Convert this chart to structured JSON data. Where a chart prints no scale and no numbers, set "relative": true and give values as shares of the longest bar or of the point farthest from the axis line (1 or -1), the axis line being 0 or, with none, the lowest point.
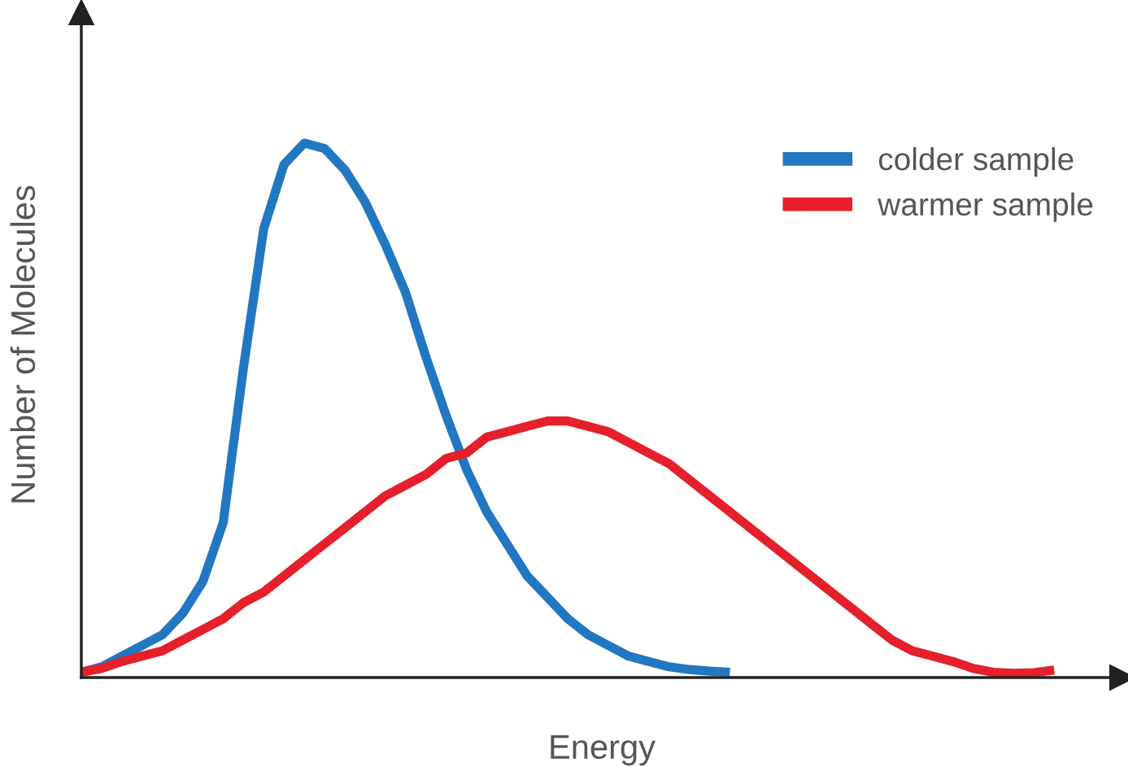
{
  "chart_data": {
    "type": "line",
    "relative": true,
    "xlabel": "Energy",
    "ylabel": "Number of Molecules",
    "legend": "top right",
    "marker": "none",
    "line_style": "solid",
    "categories": [
      null,
      null,
      null,
      null,
      null,
      null,
      null,
      null,
      null,
      null,
      null,
      null,
      null,
      null,
      null,
      null,
      null,
      null,
      null,
      null,
      null,
      null,
      null,
      null,
      null,
      null,
      null,
      null,
      null,
      null,
      null,
      null,
      null,
      null,
      null,
      null,
      null,
      null,
      null,
      null,
      null,
      null,
      null,
      null,
      null,
      null,
      null,
      null,
      null
    ],
    "series": [
      {
        "name": "colder sample",
        "color": "#2277c2",
        "values": [
          0.01,
          0.02,
          0.04,
          0.06,
          0.08,
          0.12,
          0.18,
          0.29,
          0.58,
          0.84,
          0.96,
          1.0,
          0.99,
          0.95,
          0.89,
          0.81,
          0.72,
          0.6,
          0.49,
          0.39,
          0.31,
          0.25,
          0.19,
          0.15,
          0.11,
          0.08,
          0.06,
          0.04,
          0.03,
          0.02,
          0.015,
          0.012,
          0.01,
          null,
          null,
          null,
          null,
          null,
          null,
          null,
          null,
          null,
          null,
          null,
          null,
          null,
          null,
          null,
          null
        ]
      },
      {
        "name": "warmer sample",
        "color": "#e5202a",
        "values": [
          0.01,
          0.017,
          0.03,
          0.04,
          0.05,
          0.07,
          0.09,
          0.11,
          0.14,
          0.16,
          0.19,
          0.22,
          0.25,
          0.28,
          0.31,
          0.34,
          0.36,
          0.38,
          0.41,
          0.42,
          0.45,
          0.46,
          0.47,
          0.48,
          0.48,
          0.47,
          0.46,
          0.44,
          0.42,
          0.4,
          0.37,
          0.34,
          0.31,
          0.28,
          0.25,
          0.22,
          0.19,
          0.16,
          0.13,
          0.1,
          0.07,
          0.05,
          0.04,
          0.03,
          0.017,
          0.01,
          0.008,
          0.009,
          0.014
        ]
      }
    ]
  }
}
